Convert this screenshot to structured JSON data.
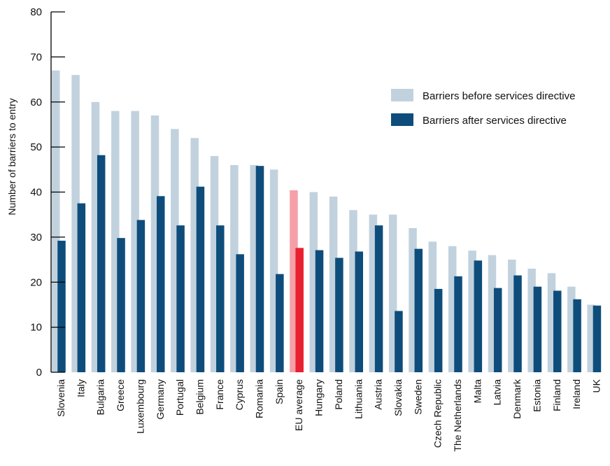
{
  "chart_data": {
    "type": "bar",
    "title": "",
    "xlabel": "",
    "ylabel": "Number of barriers to entry",
    "ylim": [
      0,
      80
    ],
    "yticks": [
      "0",
      "10",
      "20",
      "30",
      "40",
      "50",
      "60",
      "70",
      "80"
    ],
    "grid": false,
    "legend_position": "top-right",
    "categories": [
      "Slovenia",
      "Italy",
      "Bulgaria",
      "Greece",
      "Luxembourg",
      "Germany",
      "Portugal",
      "Belgium",
      "France",
      "Cyprus",
      "Romania",
      "Spain",
      "EU average",
      "Hungary",
      "Poland",
      "Lithuania",
      "Austria",
      "Slovakia",
      "Sweden",
      "Czech Republic",
      "The Netherlands",
      "Malta",
      "Latvia",
      "Denmark",
      "Estonia",
      "Finland",
      "Ireland",
      "UK"
    ],
    "highlight_category": "EU average",
    "series": [
      {
        "name": "Barriers before services directive",
        "color": "#c1d2de",
        "highlight_color": "#f5a0a8",
        "values": [
          67,
          66,
          60,
          58,
          58,
          57,
          54,
          52,
          48,
          46,
          46,
          45,
          40.4,
          40,
          39,
          36,
          35,
          35,
          32,
          29,
          28,
          27,
          26,
          25,
          23,
          22,
          19,
          15
        ]
      },
      {
        "name": "Barriers after services directive",
        "color": "#0e4d7b",
        "highlight_color": "#e8202f",
        "values": [
          29.2,
          37.5,
          48.2,
          29.8,
          33.8,
          39.1,
          32.6,
          41.2,
          32.6,
          26.2,
          45.8,
          21.8,
          27.6,
          27.1,
          25.4,
          26.8,
          32.6,
          13.6,
          27.4,
          18.5,
          21.3,
          24.8,
          18.7,
          21.5,
          19.0,
          18.1,
          16.2,
          14.8
        ]
      }
    ]
  }
}
